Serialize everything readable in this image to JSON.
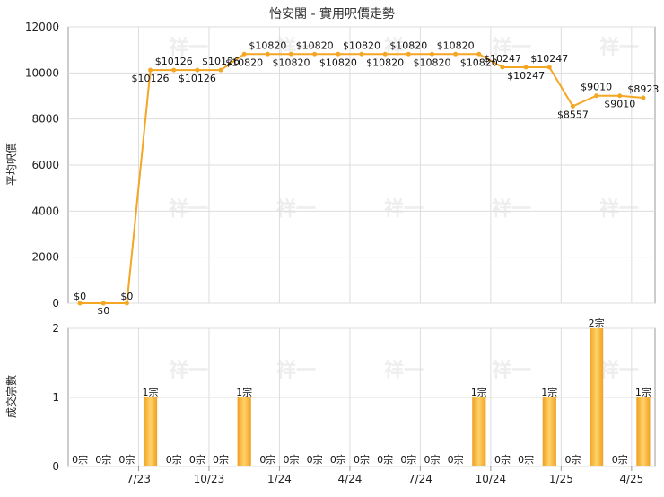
{
  "chart_data": [
    {
      "type": "line",
      "title": "怡安閣 - 實用呎價走勢",
      "ylabel": "平均呎價",
      "ylim": [
        0,
        12000
      ],
      "yticks": [
        "0",
        "2000",
        "4000",
        "6000",
        "8000",
        "10000",
        "12000"
      ],
      "color": "#f5a623",
      "values": [
        0,
        0,
        0,
        10126,
        10126,
        10126,
        10126,
        10820,
        10820,
        10820,
        10820,
        10820,
        10820,
        10820,
        10820,
        10820,
        10820,
        10820,
        10247,
        10247,
        10247,
        8557,
        9010,
        9010,
        8923
      ],
      "labels": [
        "$0",
        "$0",
        "$0",
        "$10126",
        "$10126",
        "$10126",
        "$10126",
        "$10820",
        "$10820",
        "$10820",
        "$10820",
        "$10820",
        "$10820",
        "$10820",
        "$10820",
        "$10820",
        "$10820",
        "$10820",
        "$10247",
        "$10247",
        "$10247",
        "$8557",
        "$9010",
        "$9010",
        "$8923"
      ]
    },
    {
      "type": "bar",
      "ylabel": "成交宗數",
      "ylim": [
        0,
        2
      ],
      "yticks": [
        "0",
        "1",
        "2"
      ],
      "color": "#f5a623",
      "values": [
        0,
        0,
        0,
        1,
        0,
        0,
        0,
        1,
        0,
        0,
        0,
        0,
        0,
        0,
        0,
        0,
        0,
        1,
        0,
        0,
        1,
        0,
        2,
        0,
        1
      ],
      "labels": [
        "0宗",
        "0宗",
        "0宗",
        "1宗",
        "0宗",
        "0宗",
        "0宗",
        "1宗",
        "0宗",
        "0宗",
        "0宗",
        "0宗",
        "0宗",
        "0宗",
        "0宗",
        "0宗",
        "0宗",
        "1宗",
        "0宗",
        "0宗",
        "1宗",
        "0宗",
        "2宗",
        "0宗",
        "1宗"
      ]
    }
  ],
  "x_ticks": [
    {
      "label": "7/23",
      "index": 2
    },
    {
      "label": "10/23",
      "index": 5
    },
    {
      "label": "1/24",
      "index": 8
    },
    {
      "label": "4/24",
      "index": 11
    },
    {
      "label": "7/24",
      "index": 14
    },
    {
      "label": "10/24",
      "index": 17
    },
    {
      "label": "1/25",
      "index": 20
    },
    {
      "label": "4/25",
      "index": 23
    }
  ],
  "watermark": "祥一"
}
